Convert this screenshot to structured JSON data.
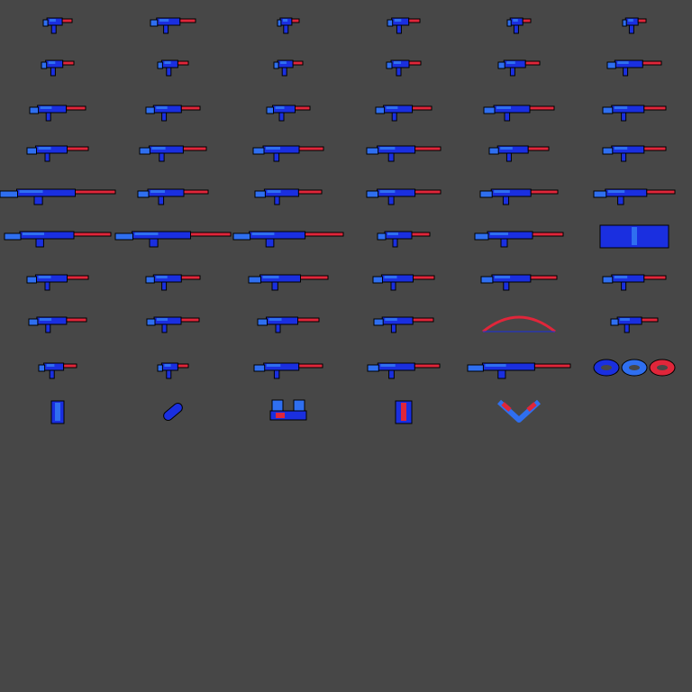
{
  "sheet": {
    "background": "#474747",
    "palette": {
      "body": "#1a2fe0",
      "light": "#2f6ff0",
      "accent": "#e0263a",
      "metal": "#8a8f9a",
      "outline": "#000000"
    },
    "rows": [
      [
        "pistol-icon",
        "long-pistol-icon",
        "compact-pistol-icon",
        "revolver-icon",
        "taser-icon",
        "mini-pistol-icon"
      ],
      [
        "machine-pistol-icon",
        "uzi-icon",
        "compact-smg-icon",
        "smg-icon",
        "smg-folding-icon",
        "p90-icon"
      ],
      [
        "mp5-icon",
        "vector-smg-icon",
        "sawed-off-shotgun-icon",
        "pump-shotgun-icon",
        "hunting-shotgun-icon",
        "combat-shotgun-icon"
      ],
      [
        "assault-rifle-icon",
        "bullpup-rifle-icon",
        "m16-rifle-icon",
        "heavy-rifle-icon",
        "medic-syringe-gun-icon",
        "ak-rifle-icon"
      ],
      [
        "long-rifle-icon",
        "ak47-icon",
        "famas-icon",
        "scoped-carbine-icon",
        "lever-rifle-icon",
        "battle-rifle-icon"
      ],
      [
        "sniper-rifle-icon",
        "heavy-sniper-icon",
        "bolt-sniper-icon",
        "rail-pistol-icon",
        "grenade-rifle-icon",
        "ammo-items-icon"
      ],
      [
        "rocket-tube-icon",
        "grenade-launcher-icon",
        "rpg-icon",
        "plasma-gun-icon",
        "bazooka-icon",
        "flamethrower-icon"
      ],
      [
        "water-cannon-icon",
        "minigun-icon",
        "laser-rifle-icon",
        "mortar-launcher-icon",
        "bow-icon",
        "ray-pistol-icon"
      ],
      [
        "dart-gun-icon",
        "syringe-icon",
        "knife-icon",
        "wrench-icon",
        "laser-sniper-icon",
        "spinner-blades-icon"
      ],
      [
        "armor-vest-icon",
        "skateboard-icon",
        "binoculars-icon",
        "twin-canisters-icon",
        "boomerang-icon"
      ]
    ]
  }
}
